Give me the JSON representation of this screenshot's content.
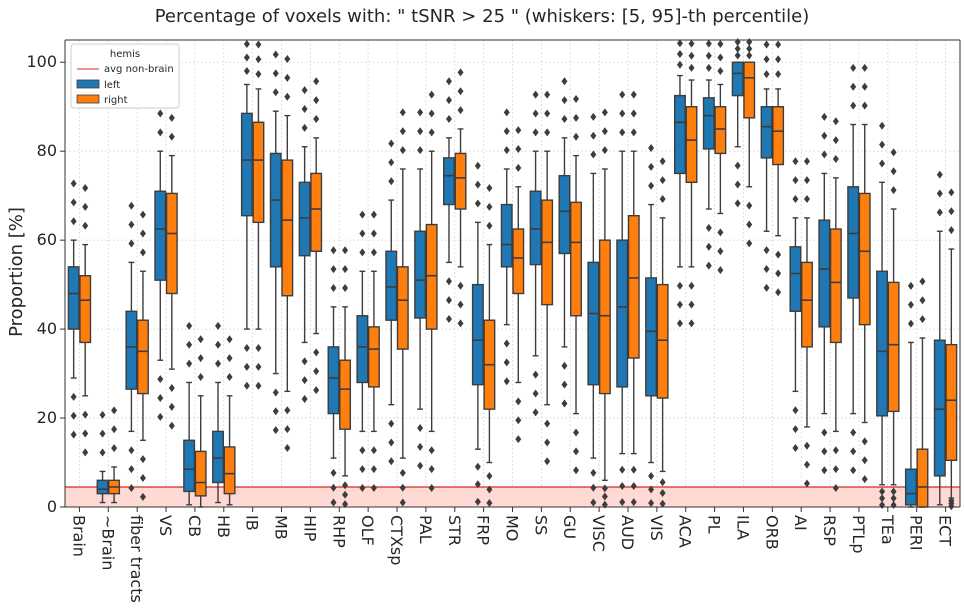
{
  "chart_data": {
    "type": "box",
    "title": "Percentage of voxels with:  \" tSNR  >  25 \"  (whiskers: [5, 95]-th percentile)",
    "xlabel": "",
    "ylabel": "Proportion [%]",
    "ylim": [
      0,
      105
    ],
    "yticks": [
      0,
      20,
      40,
      60,
      80,
      100
    ],
    "grid": true,
    "legend_position": "top-left",
    "legend": {
      "title": "hemis",
      "line_label": "avg non-brain",
      "entries": [
        "left",
        "right"
      ]
    },
    "colors": {
      "left": "#1f77b4",
      "right": "#ff7f0e",
      "avg_line": "#d62728",
      "band": "#ffdad5",
      "median": "#3d3d3d",
      "grid": "#d9d9d9",
      "outlier": "#3d3d3d"
    },
    "avg_non_brain": 4.5,
    "categories": [
      "Brain",
      "~Brain",
      "fiber tracts",
      "VS",
      "CB",
      "HB",
      "IB",
      "MB",
      "HIP",
      "RHP",
      "OLF",
      "CTXsp",
      "PAL",
      "STR",
      "FRP",
      "MO",
      "SS",
      "GU",
      "VISC",
      "AUD",
      "VIS",
      "ACA",
      "PL",
      "ILA",
      "ORB",
      "AI",
      "RSP",
      "PTLp",
      "TEa",
      "PERI",
      "ECT"
    ],
    "series": [
      {
        "name": "left",
        "boxes": [
          {
            "q1": 40,
            "med": 48,
            "q3": 54,
            "lo": 29,
            "hi": 60
          },
          {
            "q1": 3,
            "med": 4,
            "q3": 6,
            "lo": 1,
            "hi": 8
          },
          {
            "q1": 26.5,
            "med": 36,
            "q3": 44,
            "lo": 17,
            "hi": 55
          },
          {
            "q1": 51,
            "med": 62.5,
            "q3": 71,
            "lo": 33,
            "hi": 80
          },
          {
            "q1": 3.5,
            "med": 8.5,
            "q3": 15,
            "lo": 0.5,
            "hi": 28
          },
          {
            "q1": 5.5,
            "med": 11,
            "q3": 17,
            "lo": 1,
            "hi": 28
          },
          {
            "q1": 65.5,
            "med": 78,
            "q3": 88.5,
            "lo": 40,
            "hi": 95
          },
          {
            "q1": 54,
            "med": 69,
            "q3": 79.5,
            "lo": 30,
            "hi": 89
          },
          {
            "q1": 56.5,
            "med": 65,
            "q3": 73,
            "lo": 37,
            "hi": 81
          },
          {
            "q1": 21,
            "med": 29,
            "q3": 36,
            "lo": 11,
            "hi": 45
          },
          {
            "q1": 28,
            "med": 36,
            "q3": 43,
            "lo": 17,
            "hi": 53
          },
          {
            "q1": 42,
            "med": 49.5,
            "q3": 57.5,
            "lo": 23,
            "hi": 69
          },
          {
            "q1": 42.5,
            "med": 51,
            "q3": 62,
            "lo": 22,
            "hi": 76
          },
          {
            "q1": 68,
            "med": 74.5,
            "q3": 78.5,
            "lo": 55,
            "hi": 83
          },
          {
            "q1": 27.5,
            "med": 37.5,
            "q3": 50,
            "lo": 13,
            "hi": 64
          },
          {
            "q1": 54,
            "med": 59,
            "q3": 68,
            "lo": 41,
            "hi": 76
          },
          {
            "q1": 54.5,
            "med": 62.5,
            "q3": 71,
            "lo": 34,
            "hi": 80
          },
          {
            "q1": 57,
            "med": 66.5,
            "q3": 74.5,
            "lo": 36,
            "hi": 83
          },
          {
            "q1": 27.5,
            "med": 43.5,
            "q3": 55,
            "lo": 11,
            "hi": 75
          },
          {
            "q1": 27,
            "med": 45,
            "q3": 60,
            "lo": 12,
            "hi": 80
          },
          {
            "q1": 25,
            "med": 39.5,
            "q3": 51.5,
            "lo": 10,
            "hi": 68
          },
          {
            "q1": 75,
            "med": 86.5,
            "q3": 92.5,
            "lo": 54,
            "hi": 97
          },
          {
            "q1": 80.5,
            "med": 88,
            "q3": 92,
            "lo": 67,
            "hi": 96
          },
          {
            "q1": 92.5,
            "med": 97.5,
            "q3": 100,
            "lo": 81,
            "hi": 100
          },
          {
            "q1": 78.5,
            "med": 85.5,
            "q3": 90,
            "lo": 62,
            "hi": 94
          },
          {
            "q1": 44,
            "med": 52.5,
            "q3": 58.5,
            "lo": 26,
            "hi": 65
          },
          {
            "q1": 40.5,
            "med": 53.5,
            "q3": 64.5,
            "lo": 21,
            "hi": 75
          },
          {
            "q1": 47,
            "med": 61.5,
            "q3": 72,
            "lo": 21,
            "hi": 86
          },
          {
            "q1": 20.5,
            "med": 35,
            "q3": 53,
            "lo": 5,
            "hi": 73
          },
          {
            "q1": 0.5,
            "med": 3,
            "q3": 8.5,
            "lo": 0,
            "hi": 37
          },
          {
            "q1": 7,
            "med": 22,
            "q3": 37.5,
            "lo": 0.5,
            "hi": 62
          }
        ]
      },
      {
        "name": "right",
        "boxes": [
          {
            "q1": 37,
            "med": 46.5,
            "q3": 52,
            "lo": 25,
            "hi": 59
          },
          {
            "q1": 3,
            "med": 4.5,
            "q3": 6,
            "lo": 1,
            "hi": 9
          },
          {
            "q1": 25.5,
            "med": 35,
            "q3": 42,
            "lo": 15,
            "hi": 53
          },
          {
            "q1": 48,
            "med": 61.5,
            "q3": 70.5,
            "lo": 31,
            "hi": 79
          },
          {
            "q1": 2.5,
            "med": 5.5,
            "q3": 12.5,
            "lo": 0,
            "hi": 25
          },
          {
            "q1": 3,
            "med": 7.5,
            "q3": 13.5,
            "lo": 0.5,
            "hi": 25
          },
          {
            "q1": 64,
            "med": 78,
            "q3": 86.5,
            "lo": 40,
            "hi": 94
          },
          {
            "q1": 47.5,
            "med": 64.5,
            "q3": 78,
            "lo": 26,
            "hi": 88
          },
          {
            "q1": 57.5,
            "med": 67,
            "q3": 75,
            "lo": 39,
            "hi": 83
          },
          {
            "q1": 17.5,
            "med": 26.5,
            "q3": 33,
            "lo": 7,
            "hi": 45
          },
          {
            "q1": 27,
            "med": 35.5,
            "q3": 40.5,
            "lo": 17,
            "hi": 53
          },
          {
            "q1": 35.5,
            "med": 46.5,
            "q3": 54,
            "lo": 11,
            "hi": 76
          },
          {
            "q1": 40,
            "med": 52,
            "q3": 63.5,
            "lo": 17,
            "hi": 80
          },
          {
            "q1": 67,
            "med": 74,
            "q3": 79.5,
            "lo": 54,
            "hi": 85
          },
          {
            "q1": 22,
            "med": 32,
            "q3": 42,
            "lo": 10,
            "hi": 59
          },
          {
            "q1": 48,
            "med": 56,
            "q3": 62.5,
            "lo": 28,
            "hi": 72
          },
          {
            "q1": 45.5,
            "med": 59.5,
            "q3": 69,
            "lo": 23,
            "hi": 80
          },
          {
            "q1": 43,
            "med": 59.5,
            "q3": 68.5,
            "lo": 21,
            "hi": 79
          },
          {
            "q1": 25.5,
            "med": 43,
            "q3": 60,
            "lo": 6,
            "hi": 76
          },
          {
            "q1": 33.5,
            "med": 51.5,
            "q3": 65.5,
            "lo": 12,
            "hi": 80
          },
          {
            "q1": 24.5,
            "med": 37.5,
            "q3": 50,
            "lo": 8,
            "hi": 65
          },
          {
            "q1": 73,
            "med": 82.5,
            "q3": 90,
            "lo": 54,
            "hi": 96
          },
          {
            "q1": 79.5,
            "med": 85,
            "q3": 90,
            "lo": 66,
            "hi": 95
          },
          {
            "q1": 87.5,
            "med": 96.5,
            "q3": 100,
            "lo": 72,
            "hi": 100
          },
          {
            "q1": 77,
            "med": 84.5,
            "q3": 90,
            "lo": 61,
            "hi": 94
          },
          {
            "q1": 36,
            "med": 46.5,
            "q3": 55,
            "lo": 18,
            "hi": 65
          },
          {
            "q1": 37,
            "med": 50.5,
            "q3": 62.5,
            "lo": 17,
            "hi": 74
          },
          {
            "q1": 41,
            "med": 57.5,
            "q3": 70.5,
            "lo": 19,
            "hi": 86
          },
          {
            "q1": 21.5,
            "med": 36.5,
            "q3": 50.5,
            "lo": 5,
            "hi": 67
          },
          {
            "q1": 0,
            "med": 4.5,
            "q3": 13,
            "lo": 0,
            "hi": 38
          },
          {
            "q1": 10.5,
            "med": 24,
            "q3": 36.5,
            "lo": 2,
            "hi": 58
          }
        ]
      }
    ]
  }
}
